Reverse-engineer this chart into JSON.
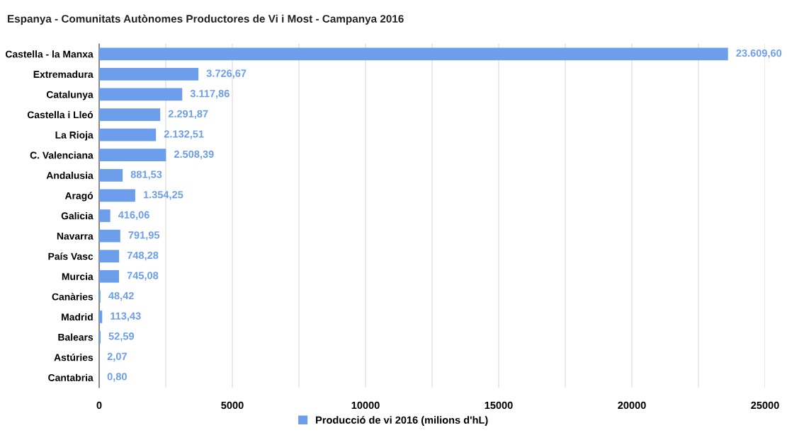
{
  "chart_data": {
    "type": "bar",
    "orientation": "horizontal",
    "title": "Espanya - Comunitats Autònomes Productores de Vi i Most - Campanya 2016",
    "categories": [
      "Castella - la Manxa",
      "Extremadura",
      "Catalunya",
      "Castella i Lleó",
      "La Rioja",
      "C. Valenciana",
      "Andalusia",
      "Aragó",
      "Galicia",
      "Navarra",
      "País Vasc",
      "Murcia",
      "Canàries",
      "Madrid",
      "Balears",
      "Astúries",
      "Cantabria"
    ],
    "series": [
      {
        "name": "Producció de vi 2016 (milions d'hL)",
        "color": "#6d9eeb",
        "values": [
          23609.6,
          3726.67,
          3117.86,
          2291.87,
          2132.51,
          2508.39,
          881.53,
          1354.25,
          416.06,
          791.95,
          748.28,
          745.08,
          48.42,
          113.43,
          52.59,
          2.07,
          0.8
        ],
        "value_labels": [
          "23.609,60",
          "3.726,67",
          "3.117,86",
          "2.291,87",
          "2.132,51",
          "2.508,39",
          "881,53",
          "1.354,25",
          "416,06",
          "791,95",
          "748,28",
          "745,08",
          "48,42",
          "113,43",
          "52,59",
          "2,07",
          "0,80"
        ]
      }
    ],
    "xlim": [
      0,
      25000
    ],
    "xticks": [
      0,
      {
        "value": 2500,
        "label": null
      },
      5000,
      {
        "value": 7500,
        "label": null
      },
      10000,
      {
        "value": 12500,
        "label": null
      },
      15000,
      {
        "value": 17500,
        "label": null
      },
      20000,
      {
        "value": 22500,
        "label": null
      },
      25000
    ],
    "grid": "x",
    "legend": "bottom"
  }
}
